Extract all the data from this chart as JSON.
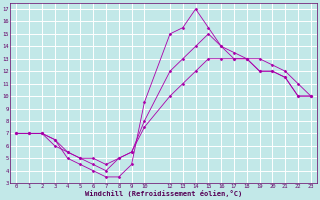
{
  "title": "",
  "xlabel": "Windchill (Refroidissement éolien,°C)",
  "ylabel": "",
  "bg_color": "#c2e8e8",
  "grid_color": "#ffffff",
  "line_color": "#aa00aa",
  "xlim": [
    -0.5,
    23.5
  ],
  "ylim": [
    3,
    17.5
  ],
  "yticks": [
    3,
    4,
    5,
    6,
    7,
    8,
    9,
    10,
    11,
    12,
    13,
    14,
    15,
    16,
    17
  ],
  "xtick_positions": [
    0,
    1,
    2,
    3,
    4,
    5,
    6,
    7,
    8,
    9,
    10,
    12,
    13,
    14,
    15,
    16,
    17,
    18,
    19,
    20,
    21,
    22,
    23
  ],
  "xtick_labels": [
    "0",
    "1",
    "2",
    "3",
    "4",
    "5",
    "6",
    "7",
    "8",
    "9",
    "10",
    "12",
    "13",
    "14",
    "15",
    "16",
    "17",
    "18",
    "19",
    "20",
    "21",
    "22",
    "23"
  ],
  "series": [
    {
      "x": [
        0,
        1,
        2,
        3,
        4,
        5,
        6,
        7,
        8,
        9,
        10,
        12,
        13,
        14,
        15,
        16,
        17,
        18,
        19,
        20,
        21,
        22,
        23
      ],
      "y": [
        7,
        7,
        7,
        6.5,
        5,
        4.5,
        4,
        3.5,
        3.5,
        4.5,
        9.5,
        15,
        15.5,
        17,
        15.5,
        14,
        13,
        13,
        12,
        12,
        11.5,
        10,
        10
      ]
    },
    {
      "x": [
        0,
        1,
        2,
        3,
        4,
        5,
        6,
        7,
        8,
        9,
        10,
        12,
        13,
        14,
        15,
        16,
        17,
        18,
        19,
        20,
        21,
        22,
        23
      ],
      "y": [
        7,
        7,
        7,
        6,
        5.5,
        5,
        4.5,
        4,
        5,
        5.5,
        7.5,
        10,
        11,
        12,
        13,
        13,
        13,
        13,
        12,
        12,
        11.5,
        10,
        10
      ]
    },
    {
      "x": [
        0,
        1,
        2,
        3,
        4,
        5,
        6,
        7,
        8,
        9,
        10,
        12,
        13,
        14,
        15,
        16,
        17,
        18,
        19,
        20,
        21,
        22,
        23
      ],
      "y": [
        7,
        7,
        7,
        6.5,
        5.5,
        5,
        5,
        4.5,
        5,
        5.5,
        8,
        12,
        13,
        14,
        15,
        14,
        13.5,
        13,
        13,
        12.5,
        12,
        11,
        10
      ]
    }
  ]
}
